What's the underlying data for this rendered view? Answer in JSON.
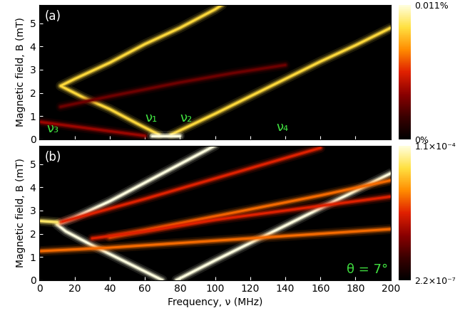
{
  "chart_data": [
    {
      "type": "heatmap",
      "panel_label": "(a)",
      "ylabel": "Magnetic field, B (mT)",
      "xlim": [
        0,
        200
      ],
      "xticks": [
        0,
        20,
        40,
        60,
        80,
        100,
        120,
        140,
        160,
        180,
        200
      ],
      "ylim": [
        0,
        5.8
      ],
      "yticks": [
        0,
        1,
        2,
        3,
        4,
        5
      ],
      "tick_labels": "y",
      "colorbar": {
        "range": [
          0,
          0.011
        ],
        "ticks": [
          {
            "value": 0,
            "label": "0%"
          },
          {
            "value": 0.011,
            "label": "0.011%"
          }
        ]
      },
      "series": [
        {
          "x": [
            68,
            55,
            40,
            25,
            12,
            20,
            40,
            60,
            80,
            100,
            104
          ],
          "values": [
            0.2,
            0.7,
            1.3,
            1.8,
            2.3,
            2.6,
            3.3,
            4.1,
            4.8,
            5.6,
            5.8
          ],
          "intensity": 0.009
        },
        {
          "x": [
            75,
            100,
            120,
            140,
            160,
            180,
            200
          ],
          "values": [
            0.2,
            1.1,
            1.85,
            2.6,
            3.35,
            4.05,
            4.8
          ],
          "intensity": 0.009
        },
        {
          "x": [
            64,
            80
          ],
          "values": [
            0.15,
            0.15
          ],
          "intensity": 0.011
        },
        {
          "x": [
            0,
            30,
            60
          ],
          "values": [
            0.75,
            0.45,
            0.15
          ],
          "intensity": 0.004
        },
        {
          "x": [
            12,
            40,
            80,
            110,
            140
          ],
          "values": [
            1.4,
            1.85,
            2.45,
            2.85,
            3.2
          ],
          "intensity": 0.003
        }
      ],
      "annotations": [
        {
          "text": "ν₁",
          "x": 60,
          "y": 0.9
        },
        {
          "text": "ν₂",
          "x": 80,
          "y": 0.9
        },
        {
          "text": "ν₃",
          "x": 4,
          "y": 0.45
        },
        {
          "text": "ν₄",
          "x": 135,
          "y": 0.5
        }
      ]
    },
    {
      "type": "heatmap",
      "panel_label": "(b)",
      "ylabel": "Magnetic field, B (mT)",
      "xlabel": "Frequency, ν (MHz)",
      "xlim": [
        0,
        200
      ],
      "xticks": [
        0,
        20,
        40,
        60,
        80,
        100,
        120,
        140,
        160,
        180,
        200
      ],
      "ylim": [
        0,
        5.8
      ],
      "yticks": [
        0,
        1,
        2,
        3,
        4,
        5
      ],
      "colorbar": {
        "range": [
          2.2e-07,
          0.00011
        ],
        "log": true,
        "ticks": [
          {
            "value": 2.2e-07,
            "label": "2.2×10⁻⁷"
          },
          {
            "value": 0.00011,
            "label": "1.1×10⁻⁴"
          }
        ]
      },
      "series": [
        {
          "x": [
            70,
            50,
            30,
            15,
            10,
            20,
            40,
            60,
            80,
            100
          ],
          "values": [
            0,
            0.75,
            1.5,
            2.1,
            2.4,
            2.7,
            3.4,
            4.2,
            5.0,
            5.8
          ],
          "intensity": 0.00011
        },
        {
          "x": [
            78,
            100,
            120,
            140,
            160,
            180,
            200
          ],
          "values": [
            0,
            0.85,
            1.6,
            2.35,
            3.1,
            3.85,
            4.6
          ],
          "intensity": 0.00011
        },
        {
          "x": [
            0,
            40,
            80,
            120,
            160,
            200
          ],
          "values": [
            1.25,
            1.4,
            1.6,
            1.8,
            2.0,
            2.2
          ],
          "intensity": 1e-05
        },
        {
          "x": [
            12,
            60,
            110,
            160
          ],
          "values": [
            2.5,
            3.5,
            4.6,
            5.7
          ],
          "intensity": 5e-06
        },
        {
          "x": [
            40,
            80,
            120,
            160,
            200
          ],
          "values": [
            1.85,
            2.45,
            3.05,
            3.65,
            4.3
          ],
          "intensity": 1e-05
        },
        {
          "x": [
            30,
            60,
            100,
            150,
            200
          ],
          "values": [
            1.8,
            2.1,
            2.6,
            3.1,
            3.6
          ],
          "intensity": 5e-06
        },
        {
          "x": [
            0,
            10
          ],
          "values": [
            2.55,
            2.5
          ],
          "intensity": 5e-05
        }
      ],
      "annotations": [
        {
          "text": "θ = 7°",
          "x": 175,
          "y": 0.45
        }
      ]
    }
  ]
}
